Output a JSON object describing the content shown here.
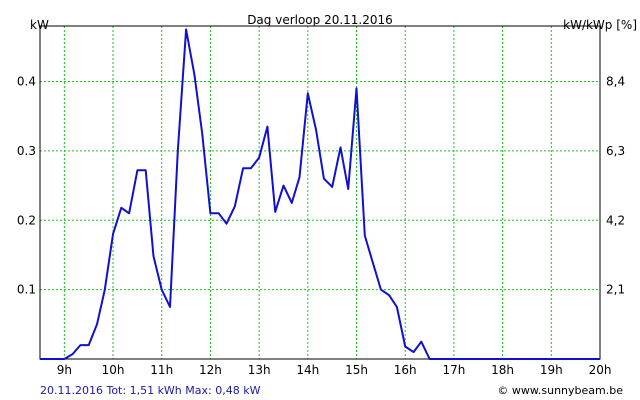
{
  "chart_data": {
    "type": "line",
    "title": "Dag  verloop 20.11.2016",
    "ylabel_left": "kW",
    "ylabel_right": "kW/kWp [%]",
    "xlim": [
      8.5,
      20.0
    ],
    "ylim": [
      0,
      0.48
    ],
    "x_ticks": [
      9,
      10,
      11,
      12,
      13,
      14,
      15,
      16,
      17,
      18,
      19,
      20
    ],
    "x_tick_labels": [
      "9h",
      "10h",
      "11h",
      "12h",
      "13h",
      "14h",
      "15h",
      "16h",
      "17h",
      "18h",
      "19h",
      "20h"
    ],
    "y_ticks_left": [
      0.1,
      0.2,
      0.3,
      0.4
    ],
    "y_tick_labels_left": [
      "0.1",
      "0.2",
      "0.3",
      "0.4"
    ],
    "y_ticks_right_kw": [
      0.1,
      0.2,
      0.3,
      0.4
    ],
    "y_tick_labels_right": [
      "2,1",
      "4,2",
      "6,3",
      "8,4"
    ],
    "grid": true,
    "legend": "none",
    "colors": {
      "series": "#1010d0",
      "grid": "#19c119",
      "frame": "#000000"
    },
    "series": [
      {
        "x": [
          8.5,
          8.67,
          8.83,
          9.0,
          9.17,
          9.33,
          9.5,
          9.67,
          9.83,
          10.0,
          10.17,
          10.33,
          10.5,
          10.67,
          10.83,
          11.0,
          11.17,
          11.33,
          11.5,
          11.67,
          11.83,
          12.0,
          12.17,
          12.33,
          12.5,
          12.67,
          12.83,
          13.0,
          13.17,
          13.33,
          13.5,
          13.67,
          13.83,
          14.0,
          14.17,
          14.33,
          14.5,
          14.67,
          14.83,
          15.0,
          15.17,
          15.33,
          15.5,
          15.67,
          15.83,
          16.0,
          16.17,
          16.33,
          16.5,
          16.67,
          17.0,
          18.0,
          19.0,
          20.0
        ],
        "y": [
          0.0,
          0.0,
          0.0,
          0.0,
          0.007,
          0.02,
          0.02,
          0.05,
          0.1,
          0.18,
          0.218,
          0.21,
          0.272,
          0.272,
          0.148,
          0.1,
          0.075,
          0.3,
          0.475,
          0.41,
          0.325,
          0.21,
          0.21,
          0.195,
          0.22,
          0.275,
          0.275,
          0.29,
          0.335,
          0.212,
          0.25,
          0.225,
          0.262,
          0.383,
          0.33,
          0.26,
          0.248,
          0.305,
          0.245,
          0.39,
          0.178,
          0.14,
          0.1,
          0.092,
          0.075,
          0.018,
          0.01,
          0.025,
          0.0,
          0.0,
          0.0,
          0.0,
          0.0,
          0.0
        ]
      }
    ]
  },
  "footer": {
    "left_text": "20.11.2016 Tot: 1,51 kWh Max: 0,48 kW",
    "right_text": "© www.sunnybeam.be"
  }
}
